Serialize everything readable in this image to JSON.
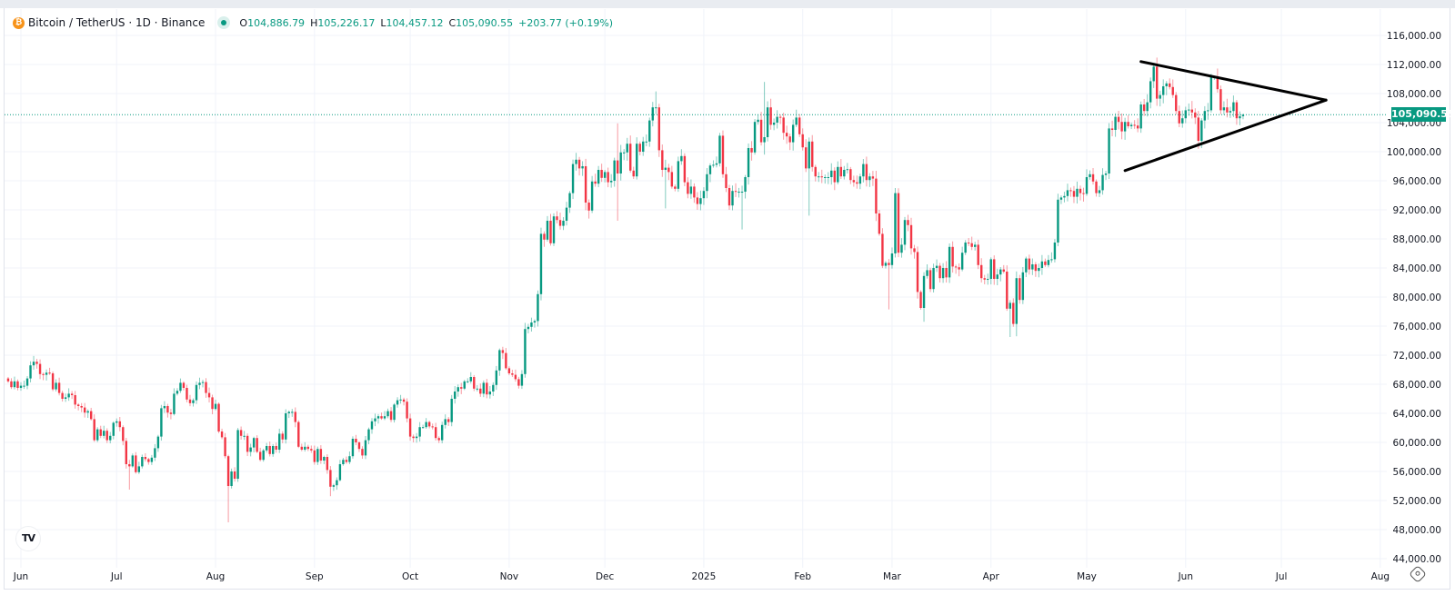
{
  "legend": {
    "symbol": "Bitcoin / TetherUS · 1D · Binance",
    "coin_icon": "bitcoin-icon",
    "market_status_icon": "market-open-dot",
    "o_label": "O",
    "o_value": "104,886.79",
    "h_label": "H",
    "h_value": "105,226.17",
    "l_label": "L",
    "l_value": "104,457.12",
    "c_label": "C",
    "c_value": "105,090.55",
    "change": "+203.77 (+0.19%)"
  },
  "last_price_label": "105,090.55",
  "icons": {
    "logo": "tradingview-logo",
    "settings": "gear-icon"
  },
  "logo_text": "TV",
  "colors": {
    "up": "#089981",
    "down": "#f23645",
    "trendline": "#000000",
    "last_price": "#089981"
  },
  "chart_data": {
    "type": "candlestick",
    "interval": "1D",
    "first_date": "2024-05-28",
    "y_ticks": [
      "44,000.00",
      "48,000.00",
      "52,000.00",
      "56,000.00",
      "60,000.00",
      "64,000.00",
      "68,000.00",
      "72,000.00",
      "76,000.00",
      "80,000.00",
      "84,000.00",
      "88,000.00",
      "92,000.00",
      "96,000.00",
      "100,000.00",
      "104,000.00",
      "108,000.00",
      "112,000.00",
      "116,000.00"
    ],
    "ylim": [
      44000,
      116000
    ],
    "x_ticks": [
      {
        "label": "Jun",
        "date": "2024-06-01"
      },
      {
        "label": "Jul",
        "date": "2024-07-01"
      },
      {
        "label": "Aug",
        "date": "2024-08-01"
      },
      {
        "label": "Sep",
        "date": "2024-09-01"
      },
      {
        "label": "Oct",
        "date": "2024-10-01"
      },
      {
        "label": "Nov",
        "date": "2024-11-01"
      },
      {
        "label": "Dec",
        "date": "2024-12-01"
      },
      {
        "label": "2025",
        "date": "2025-01-01"
      },
      {
        "label": "Feb",
        "date": "2025-02-01"
      },
      {
        "label": "Mar",
        "date": "2025-03-01"
      },
      {
        "label": "Apr",
        "date": "2025-04-01"
      },
      {
        "label": "May",
        "date": "2025-05-01"
      },
      {
        "label": "Jun",
        "date": "2025-06-01"
      },
      {
        "label": "Jul",
        "date": "2025-07-01"
      },
      {
        "label": "Aug",
        "date": "2025-08-01"
      }
    ],
    "grid": true,
    "last_price": 105090.55,
    "first_open": 68800,
    "close": [
      68400,
      67600,
      68400,
      67500,
      67800,
      67800,
      68800,
      70600,
      71100,
      70800,
      69400,
      69300,
      69600,
      69500,
      67300,
      68200,
      66800,
      66000,
      66200,
      66700,
      66500,
      65200,
      65000,
      64800,
      64100,
      64300,
      63200,
      60300,
      61800,
      60900,
      61600,
      60300,
      60900,
      62700,
      62900,
      62100,
      60200,
      57000,
      56700,
      58200,
      55900,
      56700,
      58000,
      57700,
      57300,
      57900,
      59200,
      60800,
      64700,
      65000,
      64100,
      63900,
      66700,
      67100,
      68200,
      67500,
      65900,
      65400,
      65800,
      67900,
      68200,
      68300,
      66800,
      66200,
      64600,
      65300,
      61500,
      60700,
      58100,
      54000,
      56000,
      55000,
      61700,
      60900,
      60900,
      58700,
      59300,
      60600,
      58700,
      57600,
      58900,
      59500,
      58400,
      59500,
      59000,
      61200,
      60400,
      64000,
      64200,
      64200,
      62800,
      59400,
      59000,
      59400,
      59100,
      58900,
      57300,
      59100,
      57500,
      58000,
      56200,
      53900,
      54100,
      54800,
      57000,
      57600,
      57300,
      58100,
      60500,
      60000,
      59100,
      58200,
      60300,
      61800,
      62900,
      63300,
      63600,
      63300,
      63600,
      64300,
      63100,
      65200,
      65800,
      65900,
      65600,
      63300,
      60800,
      60600,
      60800,
      62100,
      62100,
      62800,
      62200,
      62100,
      60600,
      60300,
      62400,
      63200,
      62800,
      66000,
      67000,
      67600,
      67400,
      68400,
      68400,
      69000,
      67400,
      67400,
      66700,
      68200,
      66600,
      67000,
      67900,
      69900,
      72700,
      72300,
      70200,
      69500,
      69300,
      68700,
      67800,
      69400,
      75600,
      75900,
      76500,
      76700,
      80400,
      88700,
      87900,
      90500,
      87400,
      91100,
      90600,
      89800,
      90500,
      92300,
      94300,
      98300,
      98900,
      97700,
      98000,
      93000,
      91900,
      95900,
      95600,
      97500,
      96400,
      97200,
      95800,
      96000,
      98800,
      97000,
      99900,
      99900,
      101100,
      97400,
      96600,
      101100,
      100000,
      101400,
      101400,
      104300,
      106100,
      106100,
      100200,
      97500,
      97800,
      97200,
      95200,
      94900,
      98700,
      99400,
      95800,
      94200,
      95200,
      93700,
      92800,
      93600,
      94600,
      96900,
      98100,
      98200,
      98400,
      102200,
      96900,
      95000,
      92600,
      94600,
      94500,
      94500,
      94500,
      96500,
      100500,
      99900,
      104100,
      104400,
      101300,
      102000,
      106100,
      103700,
      104000,
      104800,
      104700,
      102600,
      102100,
      101300,
      103700,
      104700,
      102400,
      100600,
      97700,
      101400,
      97900,
      96600,
      96600,
      96500,
      96500,
      96500,
      97400,
      95800,
      97900,
      96600,
      97500,
      97600,
      96100,
      95800,
      95600,
      96600,
      98300,
      96100,
      96600,
      96300,
      91500,
      88700,
      84300,
      84700,
      84400,
      86000,
      94300,
      86100,
      87200,
      90600,
      89900,
      86700,
      86200,
      80700,
      78500,
      82900,
      83700,
      81100,
      84000,
      84300,
      82600,
      84000,
      82700,
      86900,
      84200,
      84100,
      83800,
      86100,
      87500,
      87400,
      86900,
      87200,
      84400,
      82600,
      82400,
      82500,
      85200,
      82500,
      83100,
      83800,
      83500,
      78400,
      79200,
      76300,
      82600,
      79600,
      83400,
      85300,
      83800,
      84500,
      83600,
      84000,
      84900,
      84400,
      85100,
      85200,
      87500,
      93400,
      93700,
      93900,
      94700,
      94600,
      93800,
      94900,
      94300,
      94200,
      96500,
      96900,
      95900,
      94300,
      94700,
      96800,
      97000,
      103200,
      103000,
      104800,
      104100,
      102800,
      104100,
      103500,
      103700,
      103600,
      103200,
      106500,
      105600,
      106800,
      109700,
      111700,
      107300,
      107800,
      109000,
      109400,
      108900,
      107800,
      105600,
      103900,
      104600,
      105700,
      105800,
      105400,
      104700,
      101500,
      104300,
      105600,
      105700,
      110300,
      110300,
      108600,
      105700,
      106100,
      105400,
      105600,
      106800,
      104600,
      104886.79,
      105090.55
    ],
    "wicks": {
      "2024-07-05": {
        "low": 53500
      },
      "2024-08-05": {
        "high": 58300,
        "low": 49000
      },
      "2024-09-06": {
        "low": 52600
      },
      "2024-11-26": {
        "low": 90800
      },
      "2024-12-05": {
        "high": 103900,
        "low": 90500
      },
      "2024-12-17": {
        "high": 108300
      },
      "2024-12-20": {
        "low": 92200
      },
      "2025-01-13": {
        "low": 89300
      },
      "2025-01-20": {
        "high": 109600,
        "low": 99600
      },
      "2025-02-03": {
        "low": 91200
      },
      "2025-02-28": {
        "low": 78300
      },
      "2025-03-02": {
        "high": 95000
      },
      "2025-03-11": {
        "low": 76600
      },
      "2025-04-07": {
        "low": 74500
      },
      "2025-04-09": {
        "low": 74600
      },
      "2025-05-22": {
        "high": 111900
      },
      "2025-06-05": {
        "low": 100400
      },
      "2025-06-10": {
        "high": 110400
      },
      "2025-06-19": {
        "high": 105226.17,
        "low": 104457.12
      }
    },
    "trendlines": [
      {
        "name": "upper",
        "from": {
          "date": "2025-05-18",
          "price": 112400
        },
        "to": {
          "date": "2025-07-15",
          "price": 107100
        }
      },
      {
        "name": "lower",
        "from": {
          "date": "2025-05-13",
          "price": 97400
        },
        "to": {
          "date": "2025-07-15",
          "price": 107100
        }
      }
    ]
  }
}
